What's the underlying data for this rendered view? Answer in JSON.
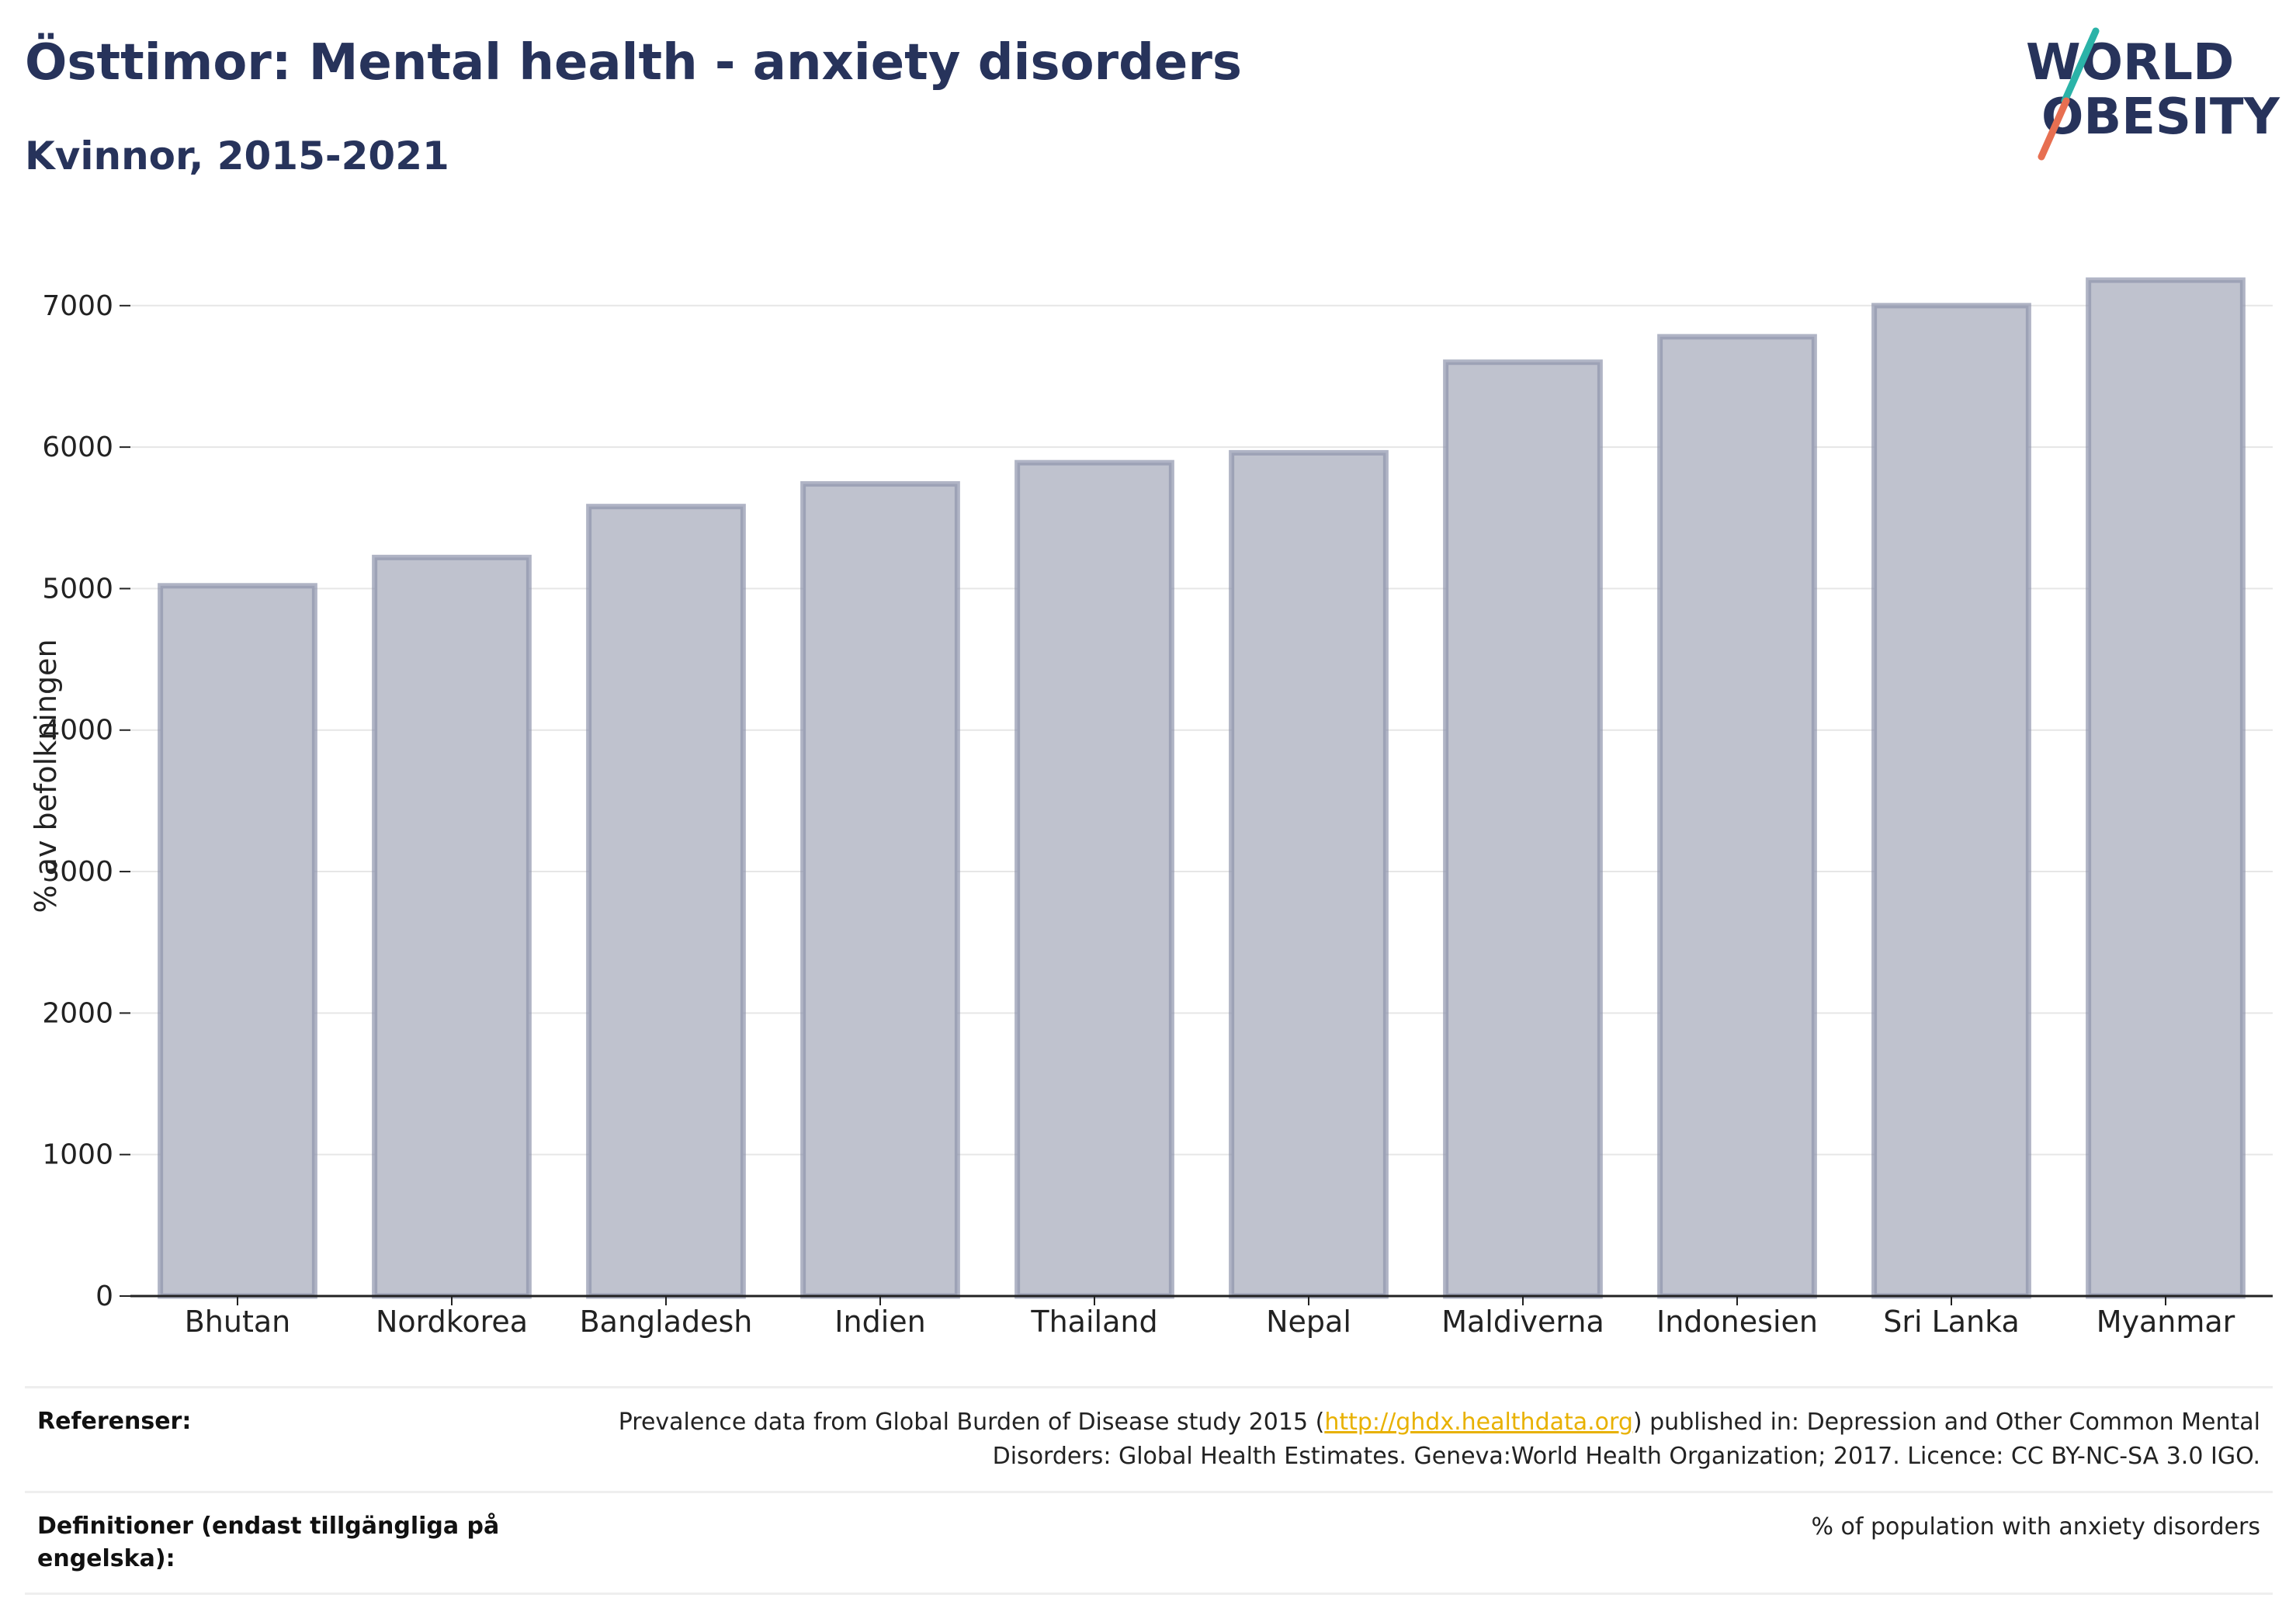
{
  "header": {
    "title": "Östtimor: Mental health - anxiety disorders",
    "subtitle": "Kvinnor, 2015-2021"
  },
  "logo": {
    "line1": "WORLD",
    "line2": "OBESITY",
    "slash_colors": [
      "#2bb3a8",
      "#e76f51"
    ]
  },
  "colors": {
    "bar_fill": "#bfc2ce",
    "bar_stroke": "#8e94ad",
    "text": "#27335b",
    "link": "#e8b100"
  },
  "chart_data": {
    "type": "bar",
    "categories": [
      "Bhutan",
      "Nordkorea",
      "Bangladesh",
      "Indien",
      "Thailand",
      "Nepal",
      "Maldiverna",
      "Indonesien",
      "Sri Lanka",
      "Myanmar"
    ],
    "values": [
      5020,
      5220,
      5580,
      5740,
      5890,
      5960,
      6600,
      6780,
      7000,
      7180
    ],
    "ylabel": "% av befolkningen",
    "xlabel": "",
    "yticks": [
      0,
      1000,
      2000,
      3000,
      4000,
      5000,
      6000,
      7000
    ],
    "ylim": [
      0,
      7350
    ],
    "grid": true,
    "legend": "none"
  },
  "footer": {
    "references_label": "Referenser:",
    "references_pre": "Prevalence data from Global Burden of Disease study 2015 (",
    "references_link": "http://ghdx.healthdata.org",
    "references_post": ") published in: Depression and Other Common Mental Disorders: Global Health Estimates. Geneva:World Health Organization; 2017. Licence: CC BY-NC-SA 3.0 IGO.",
    "definitions_label": "Definitioner (endast tillgängliga på engelska):",
    "definitions_value": "% of population with anxiety disorders"
  }
}
